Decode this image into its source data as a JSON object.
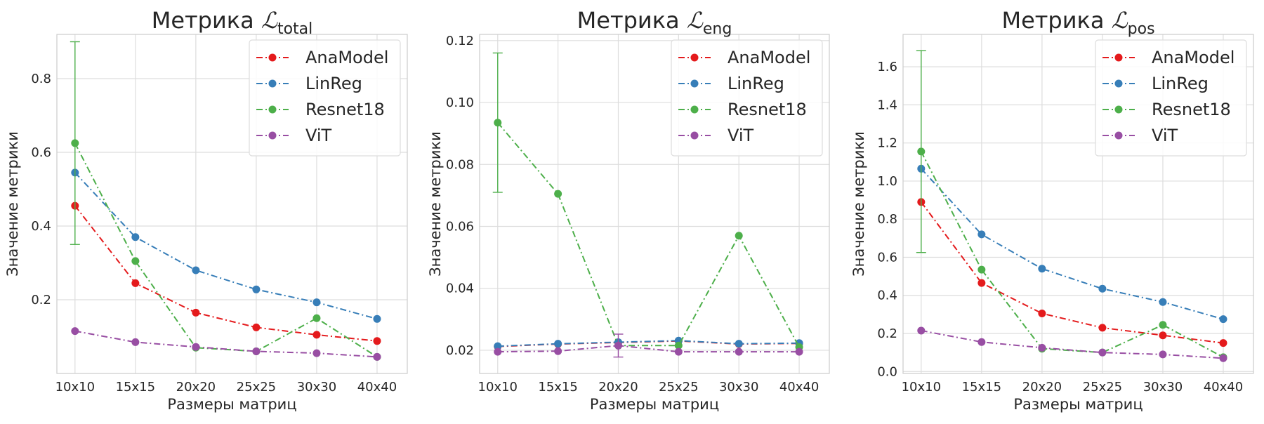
{
  "chart_data": [
    {
      "type": "line",
      "title": "Метрика",
      "title_math": "ℒ",
      "title_sub": "total",
      "xlabel": "Размеры матриц",
      "ylabel": "Значение метрики",
      "categories": [
        "10x10",
        "15x15",
        "20x20",
        "25x25",
        "30x30",
        "40x40"
      ],
      "ylim": [
        0.0,
        0.92
      ],
      "yticks": [
        0.2,
        0.4,
        0.6,
        0.8
      ],
      "ytick_labels": [
        "0.2",
        "0.4",
        "0.6",
        "0.8"
      ],
      "grid": true,
      "legend_position": "top-right",
      "series": [
        {
          "name": "AnaModel",
          "color": "#e41a1c",
          "values": [
            0.455,
            0.245,
            0.165,
            0.125,
            0.105,
            0.088
          ],
          "errors": [
            0,
            0,
            0,
            0,
            0,
            0
          ]
        },
        {
          "name": "LinReg",
          "color": "#377eb8",
          "values": [
            0.545,
            0.37,
            0.28,
            0.228,
            0.193,
            0.148
          ],
          "errors": [
            0,
            0,
            0,
            0,
            0,
            0
          ]
        },
        {
          "name": "Resnet18",
          "color": "#4daf4a",
          "values": [
            0.625,
            0.305,
            0.07,
            0.06,
            0.15,
            0.045
          ],
          "errors": [
            0.275,
            0,
            0,
            0,
            0,
            0
          ]
        },
        {
          "name": "ViT",
          "color": "#984ea3",
          "values": [
            0.115,
            0.085,
            0.072,
            0.06,
            0.055,
            0.045
          ],
          "errors": [
            0,
            0,
            0,
            0,
            0,
            0
          ]
        }
      ]
    },
    {
      "type": "line",
      "title": "Метрика",
      "title_math": "ℒ",
      "title_sub": "eng",
      "xlabel": "Размеры матриц",
      "ylabel": "Значение метрики",
      "categories": [
        "10x10",
        "15x15",
        "20x20",
        "25x25",
        "30x30",
        "40x40"
      ],
      "ylim": [
        0.0125,
        0.122
      ],
      "yticks": [
        0.02,
        0.04,
        0.06,
        0.08,
        0.1,
        0.12
      ],
      "ytick_labels": [
        "0.02",
        "0.04",
        "0.06",
        "0.08",
        "0.10",
        "0.12"
      ],
      "grid": true,
      "legend_position": "top-right",
      "series": [
        {
          "name": "AnaModel",
          "color": "#e41a1c",
          "values": [
            0.0212,
            0.022,
            0.0225,
            0.023,
            0.022,
            0.0222
          ],
          "errors": [
            0,
            0,
            0,
            0,
            0,
            0
          ]
        },
        {
          "name": "LinReg",
          "color": "#377eb8",
          "values": [
            0.0213,
            0.0221,
            0.0226,
            0.0231,
            0.0221,
            0.0223
          ],
          "errors": [
            0,
            0,
            0,
            0,
            0,
            0
          ]
        },
        {
          "name": "Resnet18",
          "color": "#4daf4a",
          "values": [
            0.0935,
            0.0705,
            0.0215,
            0.0215,
            0.057,
            0.021
          ],
          "errors": [
            0.0225,
            0,
            0,
            0,
            0,
            0
          ]
        },
        {
          "name": "ViT",
          "color": "#984ea3",
          "values": [
            0.0195,
            0.0197,
            0.0215,
            0.0195,
            0.0195,
            0.0195
          ],
          "errors": [
            0,
            0,
            0.0037,
            0,
            0,
            0
          ]
        }
      ]
    },
    {
      "type": "line",
      "title": "Метрика",
      "title_math": "ℒ",
      "title_sub": "pos",
      "xlabel": "Размеры матриц",
      "ylabel": "Значение метрики",
      "categories": [
        "10x10",
        "15x15",
        "20x20",
        "25x25",
        "30x30",
        "40x40"
      ],
      "ylim": [
        -0.01,
        1.77
      ],
      "yticks": [
        0.0,
        0.2,
        0.4,
        0.6,
        0.8,
        1.0,
        1.2,
        1.4,
        1.6
      ],
      "ytick_labels": [
        "0.0",
        "0.2",
        "0.4",
        "0.6",
        "0.8",
        "1.0",
        "1.2",
        "1.4",
        "1.6"
      ],
      "grid": true,
      "legend_position": "top-right",
      "series": [
        {
          "name": "AnaModel",
          "color": "#e41a1c",
          "values": [
            0.89,
            0.465,
            0.305,
            0.23,
            0.19,
            0.15
          ],
          "errors": [
            0,
            0,
            0,
            0,
            0,
            0
          ]
        },
        {
          "name": "LinReg",
          "color": "#377eb8",
          "values": [
            1.065,
            0.72,
            0.54,
            0.435,
            0.365,
            0.275
          ],
          "errors": [
            0,
            0,
            0,
            0,
            0,
            0
          ]
        },
        {
          "name": "Resnet18",
          "color": "#4daf4a",
          "values": [
            1.155,
            0.535,
            0.12,
            0.1,
            0.245,
            0.075
          ],
          "errors": [
            0.53,
            0,
            0,
            0,
            0,
            0
          ]
        },
        {
          "name": "ViT",
          "color": "#984ea3",
          "values": [
            0.215,
            0.155,
            0.125,
            0.1,
            0.09,
            0.07
          ],
          "errors": [
            0,
            0,
            0,
            0,
            0,
            0
          ]
        }
      ]
    }
  ]
}
